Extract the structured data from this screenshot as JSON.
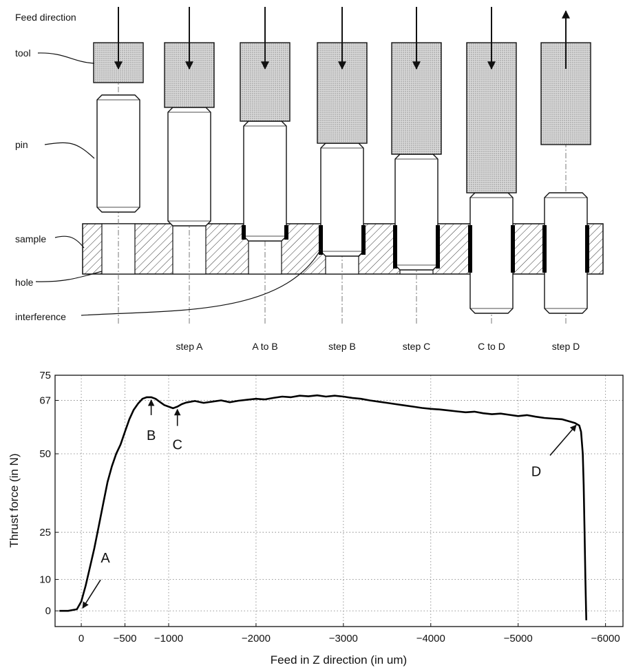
{
  "diagram": {
    "feed_direction_label": "Feed direction",
    "labels": {
      "tool": "tool",
      "pin": "pin",
      "sample": "sample",
      "hole": "hole",
      "interference": "interference"
    },
    "steps": [
      "",
      "step A",
      "A to B",
      "step B",
      "step C",
      "C to D",
      "step D"
    ],
    "colors": {
      "tool_fill": "#d4d4d4",
      "line": "#111111",
      "interference": "#000000"
    }
  },
  "chart_data": {
    "type": "line",
    "xlabel": "Feed in Z direction (in um)",
    "ylabel": "Thrust force (in N)",
    "xlim": [
      300,
      -6200
    ],
    "ylim": [
      -5,
      75
    ],
    "xticks": [
      0,
      -500,
      -1000,
      -2000,
      -3000,
      -4000,
      -5000,
      -6000
    ],
    "yticks": [
      0,
      10,
      25,
      50,
      67,
      75
    ],
    "grid": true,
    "series": [
      {
        "name": "",
        "x": [
          250,
          150,
          50,
          0,
          -50,
          -100,
          -150,
          -200,
          -250,
          -300,
          -350,
          -400,
          -450,
          -500,
          -550,
          -600,
          -650,
          -700,
          -750,
          -800,
          -850,
          -900,
          -950,
          -1000,
          -1050,
          -1100,
          -1150,
          -1200,
          -1300,
          -1400,
          -1500,
          -1600,
          -1700,
          -1800,
          -1900,
          -2000,
          -2100,
          -2200,
          -2300,
          -2400,
          -2500,
          -2600,
          -2700,
          -2800,
          -2900,
          -3000,
          -3100,
          -3200,
          -3300,
          -3400,
          -3500,
          -3600,
          -3700,
          -3800,
          -3900,
          -4000,
          -4100,
          -4200,
          -4300,
          -4400,
          -4500,
          -4600,
          -4700,
          -4800,
          -4900,
          -5000,
          -5100,
          -5200,
          -5300,
          -5400,
          -5500,
          -5600,
          -5650,
          -5700,
          -5720,
          -5740,
          -5750,
          -5760,
          -5770,
          -5780
        ],
        "y": [
          0,
          0,
          0.5,
          3,
          8,
          14,
          20,
          27,
          34,
          41,
          46,
          50,
          53,
          57,
          61,
          64,
          66,
          67.5,
          68,
          68,
          67.5,
          66.5,
          65.5,
          65,
          64.5,
          65,
          65.8,
          66.3,
          66.8,
          66.2,
          66.6,
          67,
          66.4,
          66.9,
          67.2,
          67.5,
          67.3,
          67.8,
          68.2,
          68,
          68.5,
          68.3,
          68.6,
          68.2,
          68.5,
          68.2,
          67.8,
          67.5,
          67,
          66.6,
          66.2,
          65.8,
          65.4,
          65,
          64.6,
          64.3,
          64.1,
          63.8,
          63.5,
          63.2,
          63.4,
          62.9,
          62.6,
          62.8,
          62.4,
          62,
          62.3,
          61.8,
          61.4,
          61.2,
          61,
          60.2,
          59.8,
          59,
          57,
          50,
          40,
          25,
          10,
          -3
        ]
      }
    ],
    "annotations": [
      {
        "text": "A",
        "x": 0,
        "y": 0
      },
      {
        "text": "B",
        "x": -800,
        "y": 68
      },
      {
        "text": "C",
        "x": -1100,
        "y": 65
      },
      {
        "text": "D",
        "x": -5680,
        "y": 60
      }
    ]
  }
}
